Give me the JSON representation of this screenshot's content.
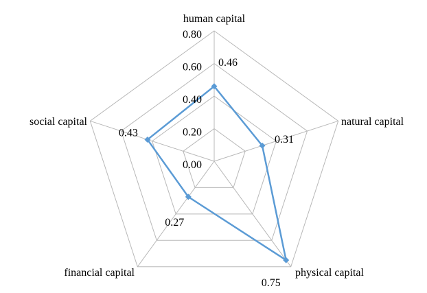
{
  "chart_data": {
    "type": "radar",
    "categories": [
      "human capital",
      "natural capital",
      "physical capital",
      "financial capital",
      "social capital"
    ],
    "series": [
      {
        "values": [
          0.46,
          0.31,
          0.75,
          0.27,
          0.43
        ],
        "color": "#5b9bd5"
      }
    ],
    "value_labels": [
      "0.46",
      "0.31",
      "0.75",
      "0.27",
      "0.43"
    ],
    "ticks": [
      "0.00",
      "0.20",
      "0.40",
      "0.60",
      "0.80"
    ],
    "tick_values": [
      0,
      0.2,
      0.4,
      0.6,
      0.8
    ],
    "rlim": [
      0,
      0.8
    ],
    "grid": true,
    "legend": "none",
    "grid_color": "#b8b8b8"
  }
}
